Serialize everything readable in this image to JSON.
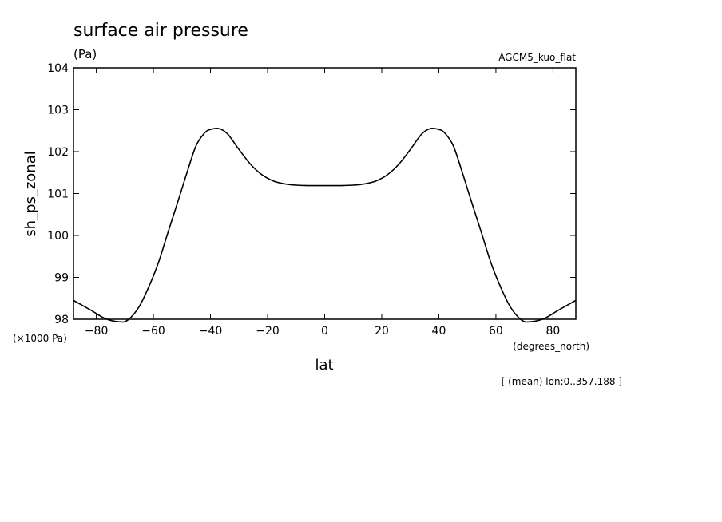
{
  "chart_data": {
    "type": "line",
    "title": "surface air pressure",
    "units_label": "(Pa)",
    "model_label": "AGCM5_kuo_flat",
    "ylabel": "sh_ps_zonal",
    "xlabel": "lat",
    "y_scale_label": "(×1000 Pa)",
    "x_units_label": "(degrees_north)",
    "footnote": "[ (mean) lon:0..357.188 ]",
    "xlim": [
      -88,
      88
    ],
    "ylim": [
      98,
      104
    ],
    "x_ticks": [
      -80,
      -60,
      -40,
      -20,
      0,
      20,
      40,
      60,
      80
    ],
    "x_tick_labels": [
      "−80",
      "−60",
      "−40",
      "−20",
      "0",
      "20",
      "40",
      "60",
      "80"
    ],
    "y_ticks": [
      98,
      99,
      100,
      101,
      102,
      103,
      104
    ],
    "y_tick_labels": [
      "98",
      "99",
      "100",
      "101",
      "102",
      "103",
      "104"
    ],
    "grid": false,
    "series": [
      {
        "x": [
          -88,
          -82,
          -77,
          -72,
          -69,
          -65,
          -61,
          -58,
          -55,
          -51,
          -48,
          -45,
          -42,
          -40,
          -37,
          -34,
          -30,
          -26,
          -22,
          -18,
          -14,
          -10,
          -6,
          -2,
          0,
          2,
          6,
          10,
          14,
          18,
          22,
          26,
          30,
          34,
          37,
          40,
          42,
          45,
          48,
          51,
          55,
          58,
          61,
          65,
          69,
          72,
          77,
          82,
          88
        ],
        "y": [
          98.45,
          98.22,
          98.02,
          97.94,
          97.98,
          98.3,
          98.87,
          99.4,
          100.05,
          100.9,
          101.55,
          102.15,
          102.45,
          102.53,
          102.55,
          102.42,
          102.05,
          101.7,
          101.45,
          101.3,
          101.23,
          101.2,
          101.19,
          101.19,
          101.19,
          101.19,
          101.19,
          101.2,
          101.23,
          101.3,
          101.45,
          101.7,
          102.05,
          102.42,
          102.55,
          102.53,
          102.45,
          102.15,
          101.55,
          100.9,
          100.05,
          99.4,
          98.87,
          98.3,
          97.98,
          97.94,
          98.02,
          98.22,
          98.45
        ]
      }
    ]
  }
}
